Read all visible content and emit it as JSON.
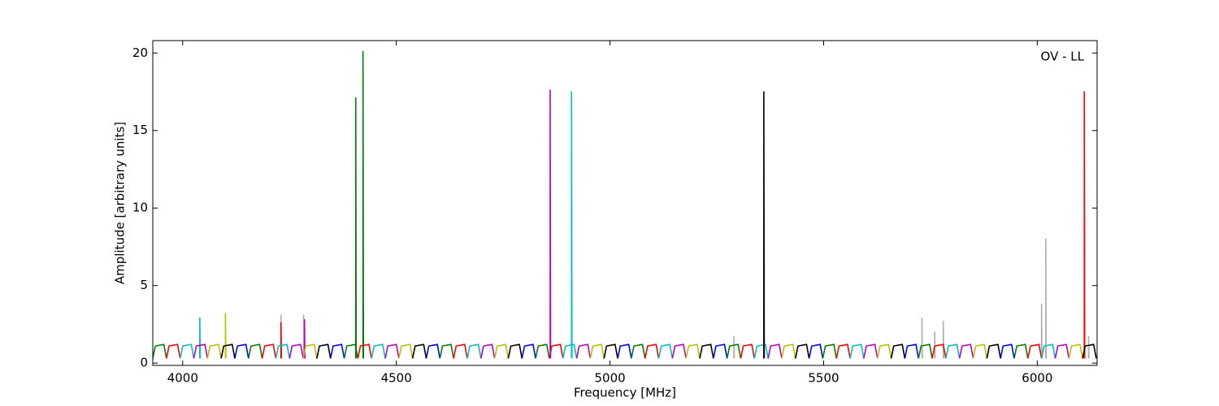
{
  "chart_data": {
    "type": "line",
    "xlabel": "Frequency [MHz]",
    "ylabel": "Amplitude [arbitrary units]",
    "annotation": "OV - LL",
    "xlim": [
      3930,
      6140
    ],
    "ylim": [
      -0.15,
      20.8
    ],
    "xticks": [
      4000,
      4500,
      5000,
      5500,
      6000
    ],
    "yticks": [
      0,
      5,
      10,
      15,
      20
    ],
    "series": [
      {
        "color": "#b0b0b0",
        "x": [
          4230,
          4230,
          4231,
          4231,
          4283,
          4283,
          4284,
          4284,
          5290,
          5290,
          5291,
          5291,
          5730,
          5730,
          5731,
          5731,
          5760,
          5760,
          5761,
          5761,
          5780,
          5780,
          5781,
          5781,
          6010,
          6010,
          6011,
          6011,
          6020,
          6020,
          6021,
          6021,
          6120,
          6120,
          6121
        ],
        "values": [
          0.3,
          3.1,
          0.3,
          null,
          0.3,
          3.1,
          0.3,
          null,
          0.3,
          1.7,
          0.3,
          null,
          0.3,
          2.9,
          0.3,
          null,
          0.3,
          2.0,
          0.3,
          null,
          0.3,
          2.7,
          0.3,
          null,
          0.3,
          3.8,
          0.3,
          null,
          0.3,
          8.0,
          0.3,
          null,
          0.3,
          1.7,
          0.3
        ]
      },
      {
        "color": "#0000ff",
        "x": [
          4122,
          4128,
          4148,
          4154,
          4154,
          4346,
          4352,
          4372,
          4378,
          4378,
          4570,
          4576,
          4596,
          4602,
          4602,
          4794,
          4800,
          4820,
          4826,
          4826,
          5018,
          5024,
          5044,
          5050,
          5050,
          5242,
          5248,
          5268,
          5274,
          5274,
          5466,
          5472,
          5492,
          5498,
          5498,
          5690,
          5696,
          5716,
          5722,
          5722,
          5914,
          5920,
          5940,
          5946
        ],
        "values": [
          0.3,
          1.1,
          1.2,
          0.3,
          null,
          0.3,
          1.1,
          1.2,
          0.3,
          null,
          0.3,
          1.1,
          1.2,
          0.3,
          null,
          0.3,
          1.1,
          1.2,
          0.3,
          null,
          0.3,
          1.1,
          1.2,
          0.3,
          null,
          0.3,
          1.1,
          1.2,
          0.3,
          null,
          0.3,
          1.1,
          1.2,
          0.3,
          null,
          0.3,
          1.1,
          1.2,
          0.3,
          null,
          0.3,
          1.1,
          1.2,
          0.3
        ]
      },
      {
        "color": "#007f00",
        "x": [
          3930,
          3936,
          3956,
          3962,
          3962,
          4154,
          4160,
          4180,
          4186,
          4186,
          4378,
          4384,
          4404,
          4410,
          4410,
          4602,
          4608,
          4628,
          4634,
          4634,
          4826,
          4832,
          4852,
          4858,
          4858,
          5050,
          5056,
          5076,
          5082,
          5082,
          5274,
          5280,
          5300,
          5306,
          5306,
          5498,
          5504,
          5524,
          5530,
          5530,
          5722,
          5728,
          5748,
          5754,
          5754,
          5946,
          5952,
          5972,
          5978,
          5978,
          4405,
          4405,
          4406,
          4406,
          4422,
          4422,
          4423
        ],
        "values": [
          0.3,
          1.1,
          1.2,
          0.3,
          null,
          0.3,
          1.1,
          1.2,
          0.3,
          null,
          0.3,
          1.1,
          1.2,
          0.3,
          null,
          0.3,
          1.1,
          1.2,
          0.3,
          null,
          0.3,
          1.1,
          1.2,
          0.3,
          null,
          0.3,
          1.1,
          1.2,
          0.3,
          null,
          0.3,
          1.1,
          1.2,
          0.3,
          null,
          0.3,
          1.1,
          1.2,
          0.3,
          null,
          0.3,
          1.1,
          1.2,
          0.3,
          null,
          0.3,
          1.1,
          1.2,
          0.3,
          null,
          0.3,
          17.1,
          0.3,
          null,
          0.3,
          20.1,
          0.3
        ]
      },
      {
        "color": "#ff0000",
        "x": [
          3962,
          3968,
          3988,
          3994,
          3994,
          4186,
          4192,
          4212,
          4218,
          4218,
          4410,
          4416,
          4436,
          4442,
          4442,
          4634,
          4640,
          4660,
          4666,
          4666,
          4858,
          4864,
          4884,
          4890,
          4890,
          5082,
          5088,
          5108,
          5114,
          5114,
          5306,
          5312,
          5332,
          5338,
          5338,
          5530,
          5536,
          5556,
          5562,
          5562,
          5754,
          5760,
          5780,
          5786,
          5786,
          5978,
          5984,
          6004,
          6010,
          6010,
          4230,
          4230,
          4231,
          4231,
          6110,
          6110,
          6111
        ],
        "values": [
          0.3,
          1.1,
          1.2,
          0.3,
          null,
          0.3,
          1.1,
          1.2,
          0.3,
          null,
          0.3,
          1.1,
          1.2,
          0.3,
          null,
          0.3,
          1.1,
          1.2,
          0.3,
          null,
          0.3,
          1.1,
          1.2,
          0.3,
          null,
          0.3,
          1.1,
          1.2,
          0.3,
          null,
          0.3,
          1.1,
          1.2,
          0.3,
          null,
          0.3,
          1.1,
          1.2,
          0.3,
          null,
          0.3,
          1.1,
          1.2,
          0.3,
          null,
          0.3,
          1.1,
          1.2,
          0.3,
          null,
          0.3,
          2.6,
          0.3,
          null,
          0.3,
          17.5,
          0.3
        ]
      },
      {
        "color": "#00bfbf",
        "x": [
          3994,
          4000,
          4020,
          4026,
          4026,
          4218,
          4224,
          4244,
          4250,
          4250,
          4442,
          4448,
          4468,
          4474,
          4474,
          4666,
          4672,
          4692,
          4698,
          4698,
          4890,
          4896,
          4916,
          4922,
          4922,
          5114,
          5120,
          5140,
          5146,
          5146,
          5338,
          5344,
          5364,
          5370,
          5370,
          5562,
          5568,
          5588,
          5594,
          5594,
          5786,
          5792,
          5812,
          5818,
          5818,
          6010,
          6016,
          6036,
          6042,
          6042,
          4040,
          4040,
          4041,
          4041,
          4910,
          4910,
          4911
        ],
        "values": [
          0.3,
          1.1,
          1.2,
          0.3,
          null,
          0.3,
          1.1,
          1.2,
          0.3,
          null,
          0.3,
          1.1,
          1.2,
          0.3,
          null,
          0.3,
          1.1,
          1.2,
          0.3,
          null,
          0.3,
          1.1,
          1.2,
          0.3,
          null,
          0.3,
          1.1,
          1.2,
          0.3,
          null,
          0.3,
          1.1,
          1.2,
          0.3,
          null,
          0.3,
          1.1,
          1.2,
          0.3,
          null,
          0.3,
          1.1,
          1.2,
          0.3,
          null,
          0.3,
          1.1,
          1.2,
          0.3,
          null,
          0.3,
          2.9,
          0.3,
          null,
          0.3,
          17.5,
          0.3
        ]
      },
      {
        "color": "#bf00bf",
        "x": [
          4026,
          4032,
          4052,
          4058,
          4058,
          4250,
          4256,
          4276,
          4282,
          4282,
          4474,
          4480,
          4500,
          4506,
          4506,
          4698,
          4704,
          4724,
          4730,
          4730,
          4922,
          4928,
          4948,
          4954,
          4954,
          5146,
          5152,
          5172,
          5178,
          5178,
          5370,
          5376,
          5396,
          5402,
          5402,
          5594,
          5600,
          5620,
          5626,
          5626,
          5818,
          5824,
          5844,
          5850,
          5850,
          6042,
          6048,
          6068,
          6074,
          6074,
          4285,
          4285,
          4286,
          4286,
          4860,
          4860,
          4861
        ],
        "values": [
          0.3,
          1.1,
          1.2,
          0.3,
          null,
          0.3,
          1.1,
          1.2,
          0.3,
          null,
          0.3,
          1.1,
          1.2,
          0.3,
          null,
          0.3,
          1.1,
          1.2,
          0.3,
          null,
          0.3,
          1.1,
          1.2,
          0.3,
          null,
          0.3,
          1.1,
          1.2,
          0.3,
          null,
          0.3,
          1.1,
          1.2,
          0.3,
          null,
          0.3,
          1.1,
          1.2,
          0.3,
          null,
          0.3,
          1.1,
          1.2,
          0.3,
          null,
          0.3,
          1.1,
          1.2,
          0.3,
          null,
          0.3,
          2.8,
          0.3,
          null,
          0.3,
          17.6,
          0.3
        ]
      },
      {
        "color": "#bfbf00",
        "x": [
          4058,
          4064,
          4084,
          4090,
          4090,
          4282,
          4288,
          4308,
          4314,
          4314,
          4506,
          4512,
          4532,
          4538,
          4538,
          4730,
          4736,
          4756,
          4762,
          4762,
          4954,
          4960,
          4980,
          4986,
          4986,
          5178,
          5184,
          5204,
          5210,
          5210,
          5402,
          5408,
          5428,
          5434,
          5434,
          5626,
          5632,
          5652,
          5658,
          5658,
          5850,
          5856,
          5876,
          5882,
          5882,
          6074,
          6080,
          6100,
          6106,
          6106,
          4100,
          4100,
          4101
        ],
        "values": [
          0.3,
          1.1,
          1.2,
          0.3,
          null,
          0.3,
          1.1,
          1.2,
          0.3,
          null,
          0.3,
          1.1,
          1.2,
          0.3,
          null,
          0.3,
          1.1,
          1.2,
          0.3,
          null,
          0.3,
          1.1,
          1.2,
          0.3,
          null,
          0.3,
          1.1,
          1.2,
          0.3,
          null,
          0.3,
          1.1,
          1.2,
          0.3,
          null,
          0.3,
          1.1,
          1.2,
          0.3,
          null,
          0.3,
          1.1,
          1.2,
          0.3,
          null,
          0.3,
          1.1,
          1.2,
          0.3,
          null,
          0.3,
          3.2,
          0.3
        ]
      },
      {
        "color": "#000000",
        "x": [
          4090,
          4096,
          4116,
          4122,
          4122,
          4314,
          4320,
          4340,
          4346,
          4346,
          4538,
          4544,
          4564,
          4570,
          4570,
          4762,
          4768,
          4788,
          4794,
          4794,
          4986,
          4992,
          5012,
          5018,
          5018,
          5210,
          5216,
          5236,
          5242,
          5242,
          5434,
          5440,
          5460,
          5466,
          5466,
          5658,
          5664,
          5684,
          5690,
          5690,
          5882,
          5888,
          5908,
          5914,
          5914,
          6106,
          6112,
          6132,
          6138,
          6138,
          5360,
          5360,
          5361
        ],
        "values": [
          0.3,
          1.1,
          1.2,
          0.3,
          null,
          0.3,
          1.1,
          1.2,
          0.3,
          null,
          0.3,
          1.1,
          1.2,
          0.3,
          null,
          0.3,
          1.1,
          1.2,
          0.3,
          null,
          0.3,
          1.1,
          1.2,
          0.3,
          null,
          0.3,
          1.1,
          1.2,
          0.3,
          null,
          0.3,
          1.1,
          1.2,
          0.3,
          null,
          0.3,
          1.1,
          1.2,
          0.3,
          null,
          0.3,
          1.1,
          1.2,
          0.3,
          null,
          0.3,
          1.1,
          1.2,
          0.3,
          null,
          0.3,
          17.5,
          0.3
        ]
      }
    ]
  }
}
